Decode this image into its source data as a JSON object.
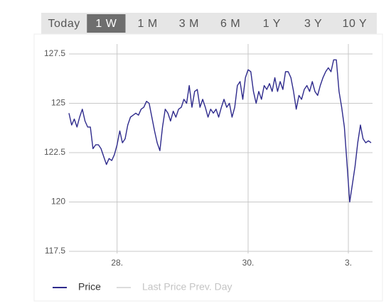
{
  "range_buttons": [
    "Today",
    "1 W",
    "1 M",
    "3 M",
    "6 M",
    "1 Y",
    "3 Y",
    "10 Y"
  ],
  "selected_range": 1,
  "chart_data": {
    "type": "line",
    "x": [
      0,
      1,
      2,
      3,
      4,
      5,
      6,
      7,
      8,
      9,
      10,
      11,
      12,
      13,
      14,
      15,
      16,
      17,
      18,
      19,
      20,
      21,
      22,
      23,
      24,
      25,
      26,
      27,
      28,
      29,
      30,
      31,
      32,
      33,
      34,
      35,
      36,
      37,
      38,
      39,
      40,
      41,
      42,
      43,
      44,
      45,
      46,
      47,
      48,
      49,
      50,
      51,
      52,
      53,
      54,
      55,
      56,
      57,
      58,
      59,
      60,
      61,
      62,
      63,
      64,
      65,
      66,
      67,
      68,
      69,
      70,
      71,
      72,
      73,
      74,
      75,
      76,
      77,
      78,
      79,
      80,
      81,
      82,
      83,
      84,
      85,
      86,
      87,
      88,
      89,
      90,
      91,
      92,
      93,
      94,
      95,
      96,
      97,
      98,
      99,
      100,
      101,
      102,
      103,
      104,
      105,
      106,
      107,
      108,
      109,
      110,
      111,
      112,
      113
    ],
    "series": [
      {
        "name": "Price",
        "color": "#2e2a8c",
        "values": [
          124.5,
          123.9,
          124.2,
          123.8,
          124.3,
          124.7,
          124.1,
          123.8,
          123.8,
          122.7,
          122.9,
          122.9,
          122.7,
          122.3,
          121.9,
          122.2,
          122.1,
          122.4,
          122.9,
          123.6,
          123.0,
          123.2,
          123.9,
          124.3,
          124.4,
          124.5,
          124.4,
          124.7,
          124.8,
          125.1,
          125.0,
          124.3,
          123.6,
          123.0,
          122.6,
          123.8,
          124.7,
          124.5,
          124.1,
          124.6,
          124.3,
          124.7,
          124.8,
          125.2,
          125.0,
          125.9,
          124.8,
          125.6,
          125.7,
          124.8,
          125.2,
          124.8,
          124.3,
          124.7,
          124.5,
          124.7,
          124.3,
          124.8,
          125.2,
          124.8,
          125.0,
          124.3,
          124.8,
          125.9,
          126.1,
          125.2,
          126.3,
          126.7,
          126.6,
          125.6,
          125.0,
          125.6,
          125.2,
          125.9,
          125.7,
          126.0,
          125.6,
          126.3,
          125.6,
          126.1,
          125.7,
          126.6,
          126.6,
          126.3,
          125.6,
          124.7,
          125.4,
          125.2,
          125.7,
          125.9,
          125.6,
          126.1,
          125.6,
          125.4,
          125.9,
          126.3,
          126.6,
          126.8,
          126.6,
          127.2,
          127.2,
          125.6,
          124.8,
          123.8,
          121.9,
          120.0,
          120.9,
          121.8,
          123.0,
          123.9,
          123.2,
          123.0,
          123.1,
          123.0
        ]
      }
    ],
    "reference_line": {
      "name": "Last Price Prev. Day",
      "color": "#dcdcdc"
    },
    "xlim": [
      0,
      113
    ],
    "xticks": [
      {
        "value": 18,
        "label": "28."
      },
      {
        "value": 67,
        "label": "30."
      },
      {
        "value": 104.5,
        "label": "3."
      }
    ],
    "ylim": [
      117.5,
      127.5
    ],
    "yticks": [
      117.5,
      120,
      122.5,
      125,
      127.5
    ],
    "grid": true
  }
}
